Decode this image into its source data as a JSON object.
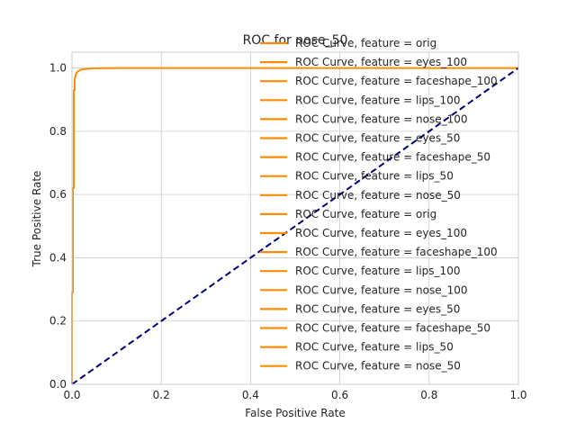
{
  "chart_data": {
    "type": "line",
    "title": "ROC for nose_50",
    "xlabel": "False Positive Rate",
    "ylabel": "True Positive Rate",
    "xlim": [
      0,
      1
    ],
    "ylim": [
      0,
      1.05
    ],
    "x_ticks": [
      "0.0",
      "0.2",
      "0.4",
      "0.6",
      "0.8",
      "1.0"
    ],
    "y_ticks": [
      "0.0",
      "0.2",
      "0.4",
      "0.6",
      "0.8",
      "1.0"
    ],
    "grid": true,
    "legend_position": "upper right",
    "series_color": "#ff8c00",
    "diagonal_color": "#000080",
    "roc_curve": {
      "x": [
        0.0,
        0.0,
        0.002,
        0.002,
        0.004,
        0.004,
        0.006,
        0.006,
        0.008,
        0.01,
        0.014,
        0.02,
        0.03,
        0.05,
        0.1,
        0.2,
        0.4,
        0.6,
        0.8,
        1.0
      ],
      "y": [
        0.0,
        0.29,
        0.29,
        0.62,
        0.62,
        0.93,
        0.93,
        0.965,
        0.975,
        0.985,
        0.99,
        0.995,
        0.997,
        0.999,
        1.0,
        1.0,
        1.0,
        1.0,
        1.0,
        1.0
      ]
    },
    "diagonal": {
      "x": [
        0,
        1
      ],
      "y": [
        0,
        1
      ]
    },
    "series": [
      {
        "name": "ROC Curve, feature = orig"
      },
      {
        "name": "ROC Curve, feature = eyes_100"
      },
      {
        "name": "ROC Curve, feature = faceshape_100"
      },
      {
        "name": "ROC Curve, feature = lips_100"
      },
      {
        "name": "ROC Curve, feature = nose_100"
      },
      {
        "name": "ROC Curve, feature = eyes_50"
      },
      {
        "name": "ROC Curve, feature = faceshape_50"
      },
      {
        "name": "ROC Curve, feature = lips_50"
      },
      {
        "name": "ROC Curve, feature = nose_50"
      },
      {
        "name": "ROC Curve, feature = orig"
      },
      {
        "name": "ROC Curve, feature = eyes_100"
      },
      {
        "name": "ROC Curve, feature = faceshape_100"
      },
      {
        "name": "ROC Curve, feature = lips_100"
      },
      {
        "name": "ROC Curve, feature = nose_100"
      },
      {
        "name": "ROC Curve, feature = eyes_50"
      },
      {
        "name": "ROC Curve, feature = faceshape_50"
      },
      {
        "name": "ROC Curve, feature = lips_50"
      },
      {
        "name": "ROC Curve, feature = nose_50"
      }
    ]
  }
}
